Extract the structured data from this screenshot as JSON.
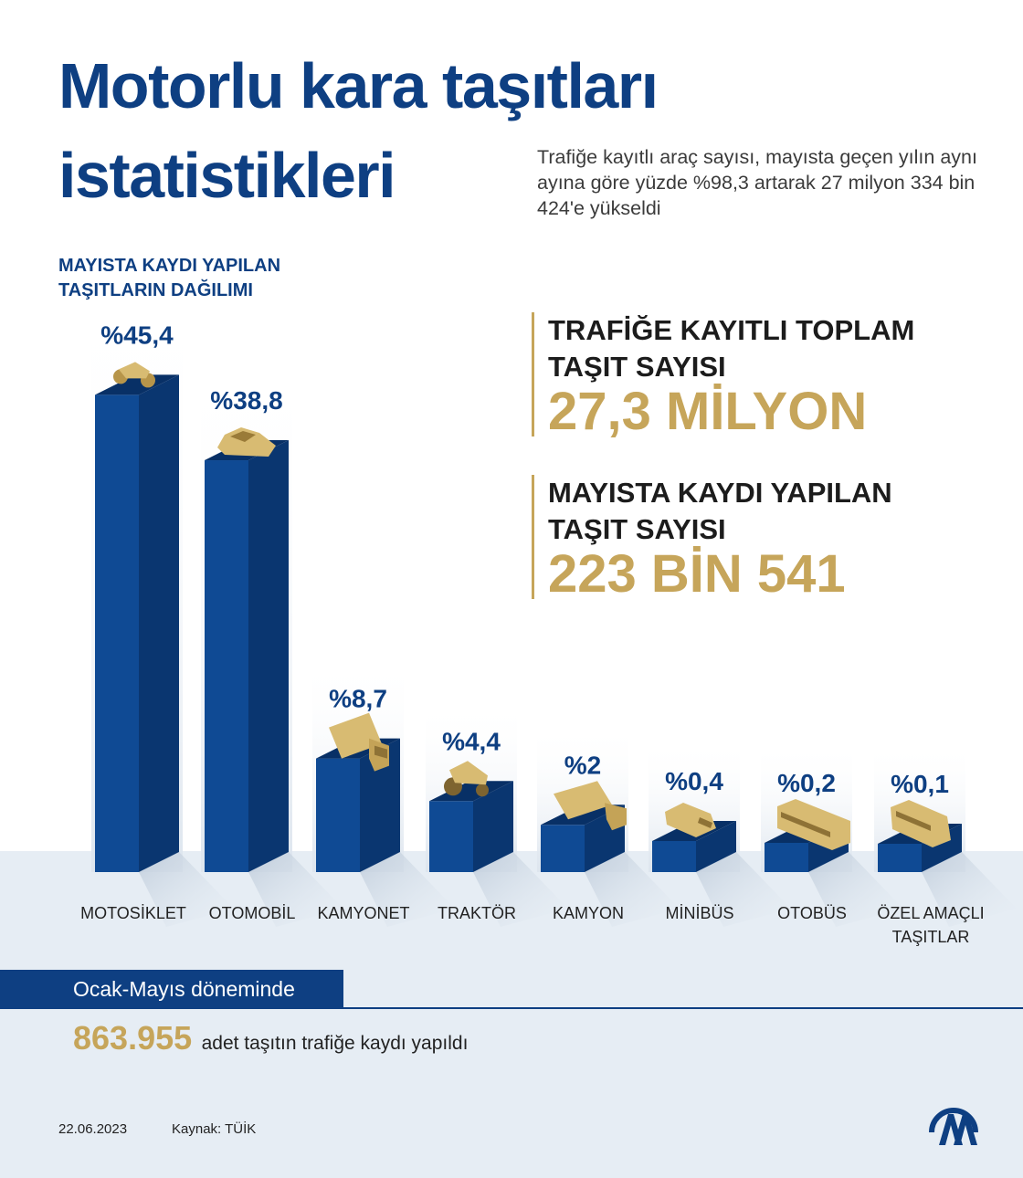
{
  "header": {
    "title_line1": "Motorlu kara taşıtları",
    "title_line2": "istatistikleri",
    "subtitle": "Trafiğe kayıtlı araç sayısı, mayısta geçen yılın aynı ayına göre yüzde %98,3 artarak 27 milyon 334 bin 424'e yükseldi"
  },
  "distribution_title": "MAYISTA KAYDI YAPILAN TAŞITLARIN DAĞILIMI",
  "stats": {
    "total_label": "TRAFİĞE KAYITLI TOPLAM TAŞIT SAYISI",
    "total_value": "27,3 MİLYON",
    "may_label": "MAYISTA KAYDI YAPILAN TAŞIT SAYISI",
    "may_value": "223 BİN 541"
  },
  "chart_data": {
    "type": "bar",
    "title": "MAYISTA KAYDI YAPILAN TAŞITLARIN DAĞILIMI",
    "unit": "%",
    "categories": [
      "MOTOSİKLET",
      "OTOMOBİL",
      "KAMYONET",
      "TRAKTÖR",
      "KAMYON",
      "MİNİBÜS",
      "OTOBÜS",
      "ÖZEL AMAÇLI TAŞITLAR"
    ],
    "values": [
      45.4,
      38.8,
      8.7,
      4.4,
      2,
      0.4,
      0.2,
      0.1
    ],
    "value_labels": [
      "%45,4",
      "%38,8",
      "%8,7",
      "%4,4",
      "%2",
      "%0,4",
      "%0,2",
      "%0,1"
    ],
    "icons": [
      "motorcycle-icon",
      "car-icon",
      "van-icon",
      "tractor-icon",
      "truck-icon",
      "minibus-icon",
      "bus-icon",
      "special-vehicle-icon"
    ]
  },
  "period": {
    "banner": "Ocak-Mayıs döneminde",
    "value": "863.955",
    "text": "adet taşıtın trafiğe kaydı yapıldı"
  },
  "footer": {
    "date": "22.06.2023",
    "source": "Kaynak: TÜİK"
  },
  "colors": {
    "navy": "#0e3f82",
    "bar_front": "#0f4a94",
    "bar_side": "#0a3670",
    "bar_top": "#083066",
    "gold": "#c6a55a",
    "floor": "#e6edf4"
  }
}
